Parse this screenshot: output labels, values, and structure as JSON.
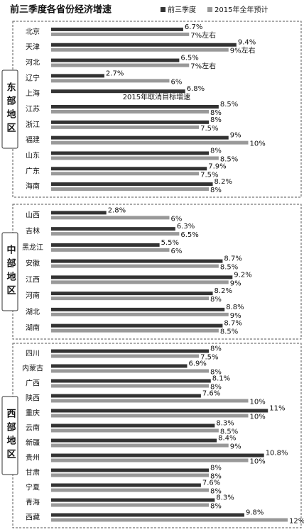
{
  "chart_data": [
    {
      "type": "bar",
      "orientation": "horizontal",
      "title": "前三季度各省份经济增速",
      "region": "东部地区",
      "xlim": [
        0,
        12
      ],
      "categories": [
        "北京",
        "天津",
        "河北",
        "辽宁",
        "上海",
        "江苏",
        "浙江",
        "福建",
        "山东",
        "广东",
        "海南"
      ],
      "series": [
        {
          "name": "前三季度",
          "color": "#333333",
          "values": [
            6.7,
            9.4,
            6.5,
            2.7,
            6.8,
            8.5,
            8,
            9,
            8,
            7.9,
            8.2
          ],
          "value_labels": [
            "6.7%",
            "9.4%",
            "6.5%",
            "2.7%",
            "6.8%",
            "8.5%",
            "8%",
            "9%",
            "8%",
            "7.9%",
            "8.2%"
          ]
        },
        {
          "name": "2015年全年预计",
          "color": "#999999",
          "values": [
            7,
            9,
            7,
            6,
            null,
            8,
            7.5,
            10,
            8.5,
            7.5,
            8
          ],
          "value_labels": [
            "7%左右",
            "9%左右",
            "7%左右",
            "6%",
            "2015年取消目标增速",
            "8%",
            "7.5%",
            "10%",
            "8.5%",
            "7.5%",
            "8%"
          ]
        }
      ]
    },
    {
      "type": "bar",
      "orientation": "horizontal",
      "region": "中部地区",
      "xlim": [
        0,
        12
      ],
      "categories": [
        "山西",
        "吉林",
        "黑龙江",
        "安徽",
        "江西",
        "河南",
        "湖北",
        "湖南"
      ],
      "series": [
        {
          "name": "前三季度",
          "color": "#333333",
          "values": [
            2.8,
            6.3,
            5.5,
            8.7,
            9.2,
            8.2,
            8.8,
            8.7
          ],
          "value_labels": [
            "2.8%",
            "6.3%",
            "5.5%",
            "8.7%",
            "9.2%",
            "8.2%",
            "8.8%",
            "8.7%"
          ]
        },
        {
          "name": "2015年全年预计",
          "color": "#999999",
          "values": [
            6,
            6.5,
            6,
            8.5,
            9,
            8,
            9,
            8.5
          ],
          "value_labels": [
            "6%",
            "6.5%",
            "6%",
            "8.5%",
            "9%",
            "8%",
            "9%",
            "8.5%"
          ]
        }
      ]
    },
    {
      "type": "bar",
      "orientation": "horizontal",
      "region": "西部地区",
      "xlim": [
        0,
        12
      ],
      "categories": [
        "四川",
        "内蒙古",
        "广西",
        "陕西",
        "重庆",
        "云南",
        "新疆",
        "贵州",
        "甘肃",
        "宁夏",
        "青海",
        "西藏"
      ],
      "series": [
        {
          "name": "前三季度",
          "color": "#333333",
          "values": [
            8,
            6.9,
            8.1,
            7.6,
            11,
            8.3,
            8.4,
            10.8,
            8,
            7.6,
            8.3,
            9.8
          ],
          "value_labels": [
            "8%",
            "6.9%",
            "8.1%",
            "7.6%",
            "11%",
            "8.3%",
            "8.4%",
            "10.8%",
            "8%",
            "7.6%",
            "8.3%",
            "9.8%"
          ]
        },
        {
          "name": "2015年全年预计",
          "color": "#999999",
          "values": [
            7.5,
            8,
            8,
            10,
            10,
            8.5,
            9,
            10,
            8,
            8,
            8,
            12
          ],
          "value_labels": [
            "7.5%",
            "8%",
            "8%",
            "10%",
            "10%",
            "8.5%",
            "9%",
            "10%",
            "8%",
            "8%",
            "8%",
            "12%"
          ]
        }
      ]
    }
  ]
}
